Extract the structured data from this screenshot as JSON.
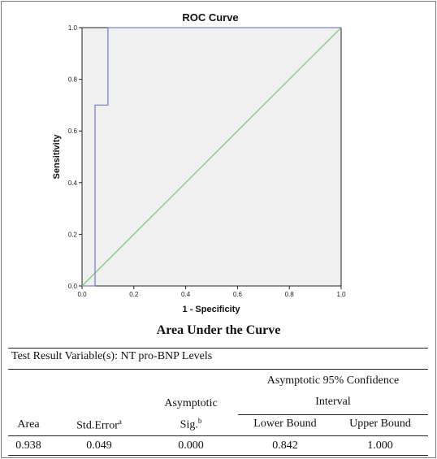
{
  "chart_data": {
    "type": "line",
    "title": "ROC Curve",
    "xlabel": "1 - Specificity",
    "ylabel": "Sensitivity",
    "xlim": [
      0.0,
      1.0
    ],
    "ylim": [
      0.0,
      1.0
    ],
    "xticks": [
      "0.0",
      "0.2",
      "0.4",
      "0.6",
      "0.8",
      "1.0"
    ],
    "yticks": [
      "0.0",
      "0.2",
      "0.4",
      "0.6",
      "0.8",
      "1.0"
    ],
    "grid": false,
    "series": [
      {
        "color": "#7b86c2",
        "x": [
          0.0,
          0.05,
          0.05,
          0.05,
          0.1,
          0.1,
          1.0
        ],
        "y": [
          0.0,
          0.0,
          0.0,
          0.7,
          0.7,
          1.0,
          1.0
        ]
      },
      {
        "color": "#7fc97f",
        "x": [
          0.0,
          1.0
        ],
        "y": [
          0.0,
          1.0
        ]
      }
    ]
  },
  "table": {
    "title": "Area Under the Curve",
    "test_variable": "Test Result Variable(s): NT pro-BNP Levels",
    "headers": {
      "area": "Area",
      "std_error": "Std.Error",
      "std_error_sup": "a",
      "asymptotic_line1": "Asymptotic",
      "asymptotic_line2": "Sig.",
      "asymptotic_sup": "b",
      "ci_line1": "Asymptotic 95% Confidence",
      "ci_line2": "Interval",
      "lower": "Lower Bound",
      "upper": "Upper Bound"
    },
    "row": {
      "area": "0.938",
      "std_error": "0.049",
      "sig": "0.000",
      "lower": "0.842",
      "upper": "1.000"
    }
  }
}
